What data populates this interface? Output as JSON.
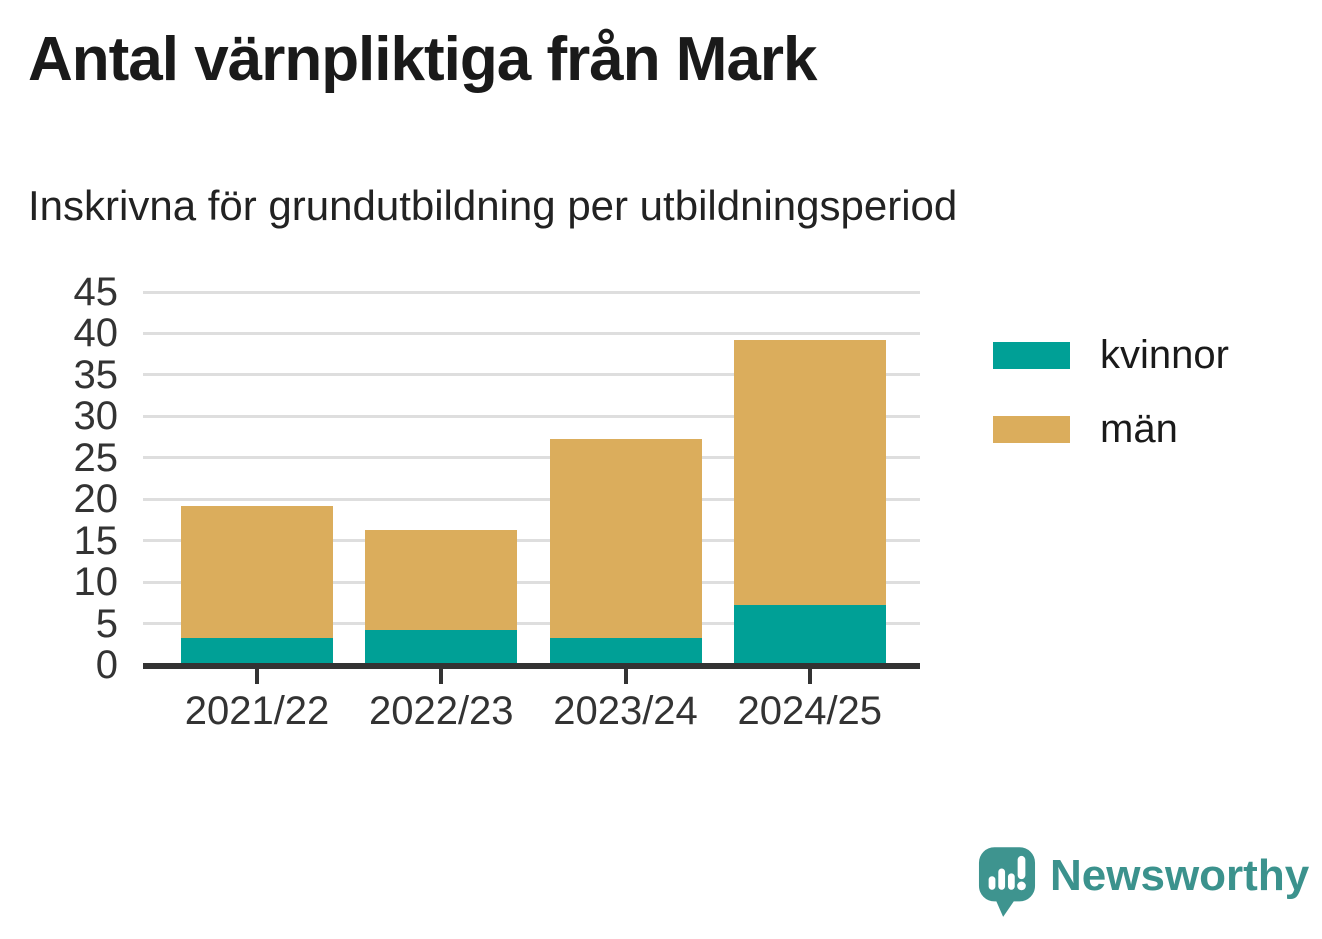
{
  "header": {
    "title": "Antal värnpliktiga från Mark",
    "subtitle": "Inskrivna för grundutbildning per utbildningsperiod"
  },
  "chart_data": {
    "type": "bar",
    "stacked": true,
    "title": "Antal värnpliktiga från Mark",
    "subtitle": "Inskrivna för grundutbildning per utbildningsperiod",
    "categories": [
      "2021/22",
      "2022/23",
      "2023/24",
      "2024/25"
    ],
    "series": [
      {
        "name": "kvinnor",
        "color": "#00A096",
        "values": [
          3,
          4,
          3,
          7
        ]
      },
      {
        "name": "män",
        "color": "#DBAD5C",
        "values": [
          16,
          12,
          24,
          32
        ]
      }
    ],
    "totals": [
      19,
      16,
      27,
      39
    ],
    "xlabel": "",
    "ylabel": "",
    "ylim": [
      0,
      45
    ],
    "yticks": [
      0,
      5,
      10,
      15,
      20,
      25,
      30,
      35,
      40,
      45
    ],
    "grid": true,
    "legend_position": "right"
  },
  "branding": {
    "logo_text": "Newsworthy",
    "logo_icon": "speech-bubble-bar-chart-icon",
    "logo_color": "#3E948F"
  },
  "colors": {
    "kvinnor": "#00A096",
    "man": "#DBAD5C",
    "gridline": "#DEDEDE",
    "axis": "#333333",
    "title_text": "#1A1A1A"
  }
}
